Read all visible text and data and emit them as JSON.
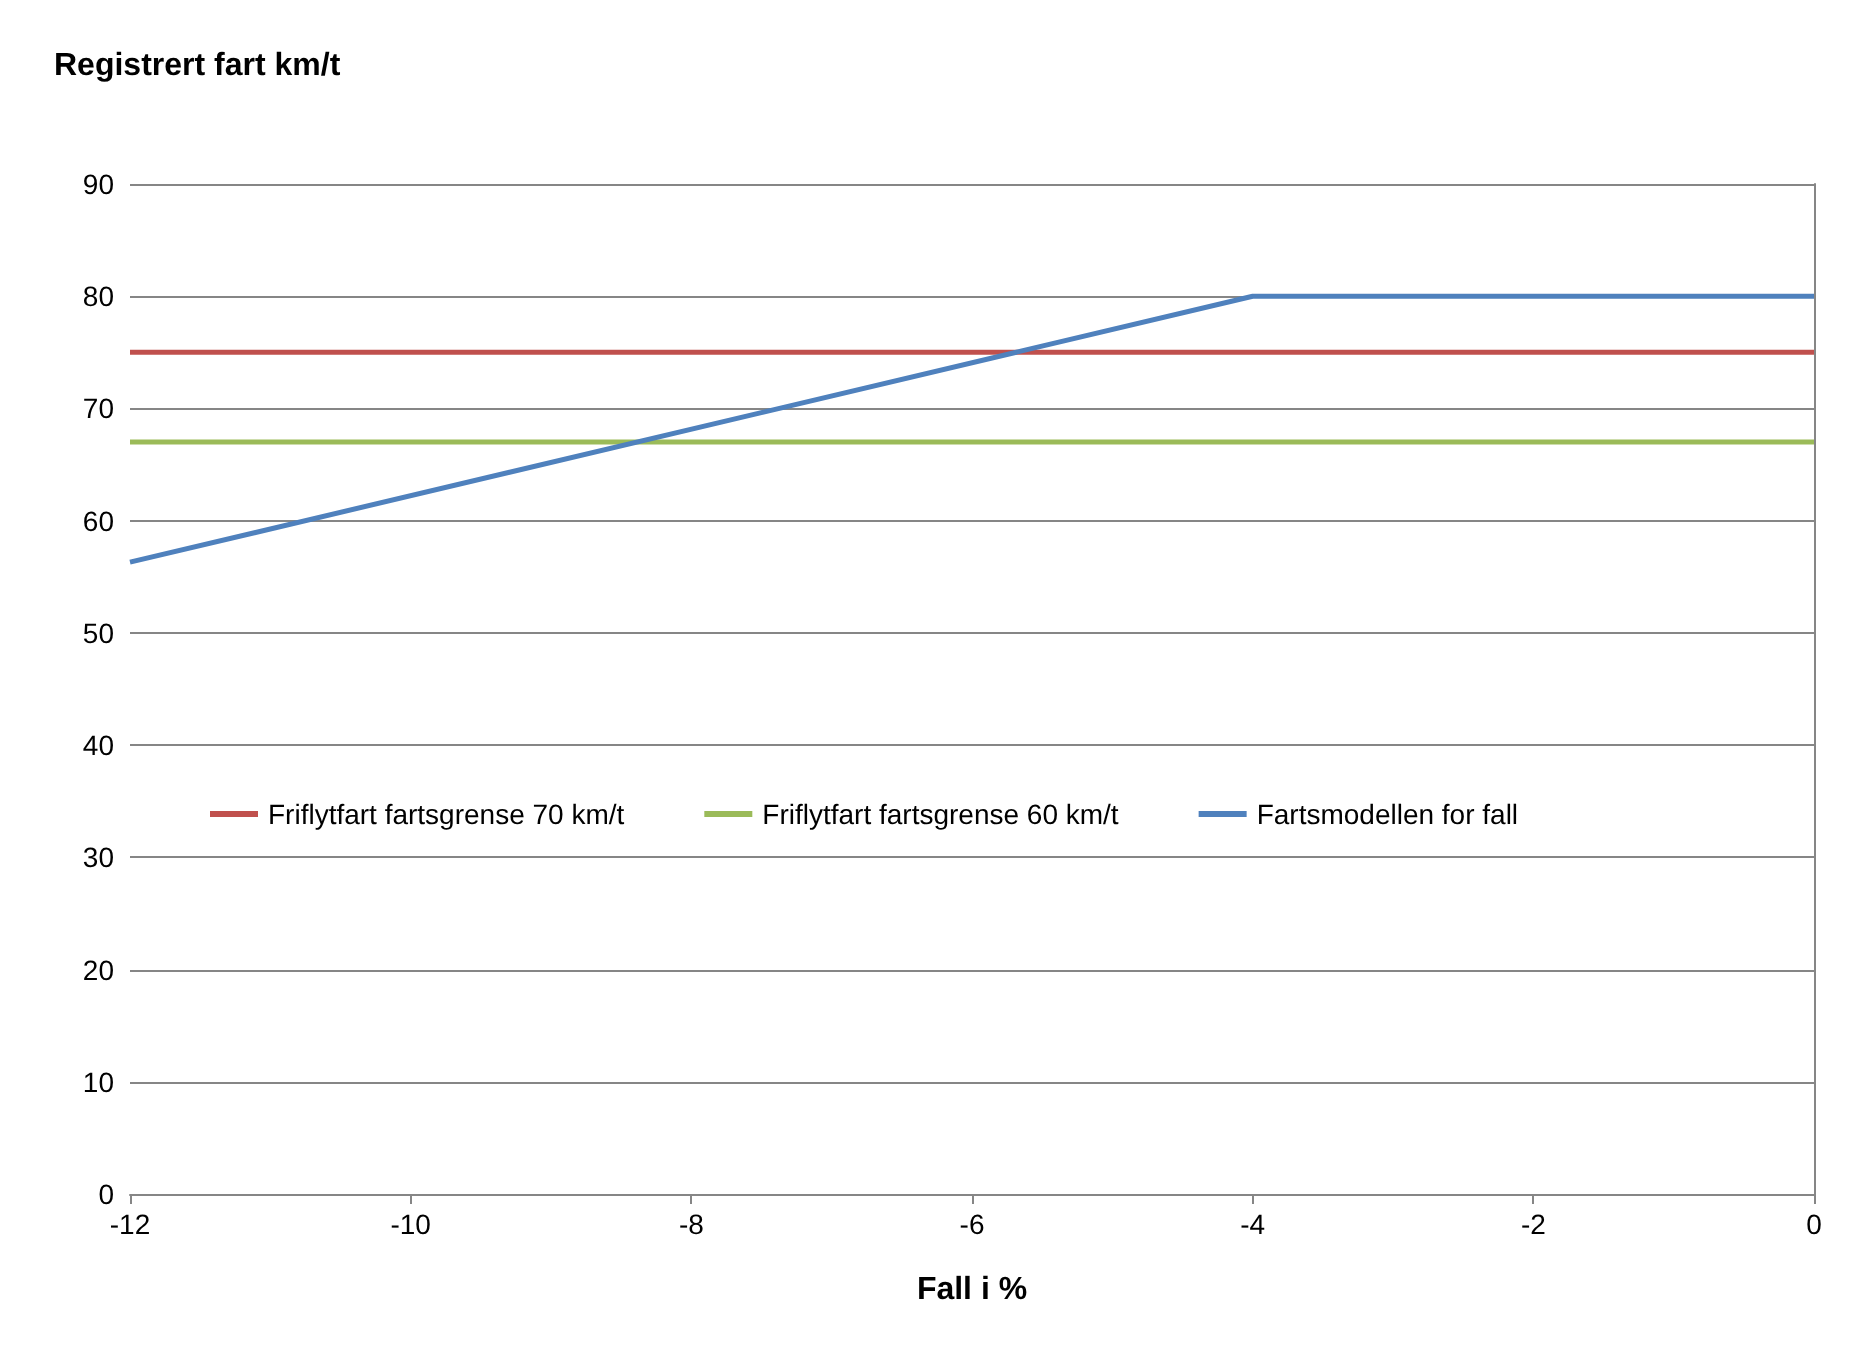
{
  "chart_data": {
    "type": "line",
    "title": "Registrert fart km/t",
    "xlabel": "Fall i %",
    "xlim": [
      -12,
      0
    ],
    "xticks": [
      -12,
      -10,
      -8,
      -6,
      -4,
      -2,
      0
    ],
    "ylim": [
      0,
      90
    ],
    "yticks": [
      0,
      10,
      20,
      30,
      40,
      50,
      60,
      70,
      80,
      90
    ],
    "grid": "y",
    "legend": "left",
    "marker": "none",
    "line_style": "solid",
    "series": [
      {
        "name": "Friflytfart fartsgrense 70 km/t",
        "color": "#c0504d",
        "x": [
          -12,
          0
        ],
        "values": [
          75,
          75
        ]
      },
      {
        "name": "Friflytfart fartsgrense 60 km/t",
        "color": "#9bbb59",
        "x": [
          -12,
          0
        ],
        "values": [
          67,
          67
        ]
      },
      {
        "name": "Fartsmodellen for fall",
        "color": "#4f81bd",
        "x": [
          -12,
          -4,
          0
        ],
        "values": [
          56.3,
          80,
          80
        ]
      }
    ]
  }
}
